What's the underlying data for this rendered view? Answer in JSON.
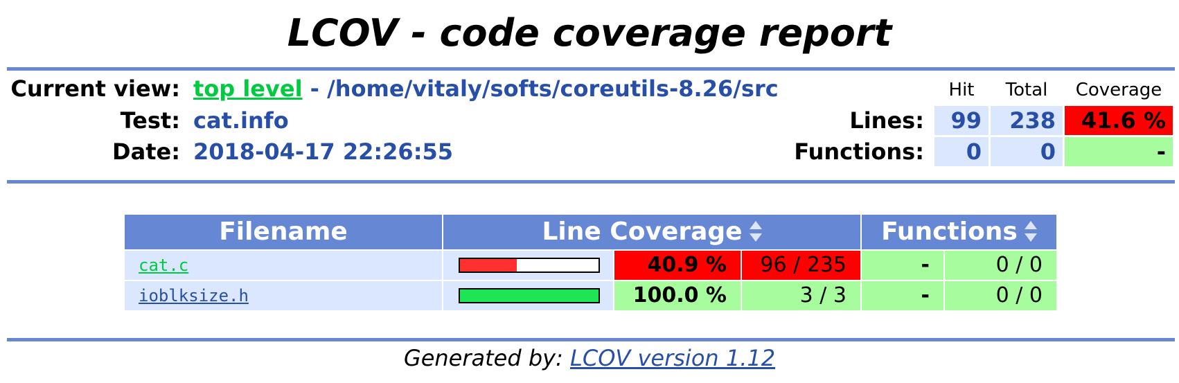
{
  "title": "LCOV - code coverage report",
  "header": {
    "current_view_label": "Current view:",
    "current_view_link": "top level",
    "current_view_path": " - /home/vitaly/softs/coreutils-8.26/src",
    "test_label": "Test:",
    "test_value": "cat.info",
    "date_label": "Date:",
    "date_value": "2018-04-17 22:26:55",
    "col_hit": "Hit",
    "col_total": "Total",
    "col_coverage": "Coverage",
    "lines_label": "Lines:",
    "lines_hit": "99",
    "lines_total": "238",
    "lines_coverage": "41.6 %",
    "functions_label": "Functions:",
    "functions_hit": "0",
    "functions_total": "0",
    "functions_coverage": "-"
  },
  "table": {
    "col_filename": "Filename",
    "col_line_coverage": "Line Coverage",
    "col_functions": "Functions",
    "rows": [
      {
        "filename": "cat.c",
        "line_pct": "40.9 %",
        "line_ratio": "96 / 235",
        "line_fraction": 0.409,
        "func_pct": "-",
        "func_ratio": "0 / 0"
      },
      {
        "filename": "ioblksize.h",
        "line_pct": "100.0 %",
        "line_ratio": "3 / 3",
        "line_fraction": 1.0,
        "func_pct": "-",
        "func_ratio": "0 / 0"
      }
    ]
  },
  "colors": {
    "rule": "#6688d4",
    "low": "#ff0000",
    "high": "#a7fc9d",
    "bar_low": "#ff3030",
    "bar_high": "#1de555",
    "link_green": "#00cb40",
    "link_blue": "#284fa8"
  },
  "footer": {
    "prefix": "Generated by: ",
    "link": "LCOV version 1.12"
  }
}
